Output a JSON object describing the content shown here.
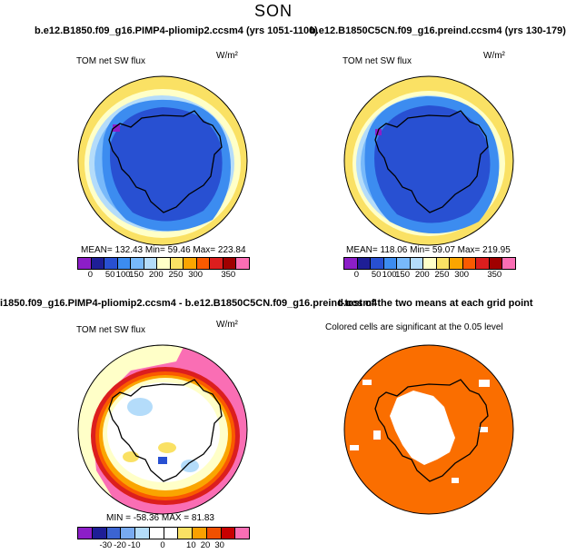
{
  "figure_title": "SON",
  "panels": [
    {
      "title": "b.e12.B1850.f09_g16.PIMP4-pliomip2.ccsm4 (yrs 1051-1100)",
      "variable": "TOM net SW flux",
      "units": "W/m²",
      "stats_label": "MEAN= 132.43  Min=  59.46  Max= 223.84",
      "ticks": [
        "0",
        "50",
        "100",
        "150",
        "200",
        "250",
        "300",
        "350"
      ]
    },
    {
      "title": "b.e12.B1850C5CN.f09_g16.preind.ccsm4 (yrs 130-179)",
      "variable": "TOM net SW flux",
      "units": "W/m²",
      "stats_label": "MEAN= 118.06  Min=  59.07  Max= 219.95",
      "ticks": [
        "0",
        "50",
        "100",
        "150",
        "200",
        "250",
        "300",
        "350"
      ]
    },
    {
      "title": "i1850.f09_g16.PIMP4-pliomip2.ccsm4 - b.e12.B1850C5CN.f09_g16.preind.ccsm4",
      "variable": "TOM net SW flux",
      "units": "W/m²",
      "stats_label": "MIN = -58.36  MAX =  81.83",
      "ticks": [
        "-30",
        "-20",
        "-10",
        "0",
        "10",
        "20",
        "30"
      ]
    },
    {
      "title": "t-test of the two means at each grid point",
      "subtitle": "Colored cells are significant at the 0.05 level"
    }
  ],
  "chart_data": [
    {
      "type": "heatmap",
      "projection": "south polar stereographic",
      "season": "SON",
      "variable": "TOM net SW flux",
      "units": "W/m2",
      "case": "b.e12.B1850.f09_g16.PIMP4-pliomip2.ccsm4 (yrs 1051-1100)",
      "mean": 132.43,
      "min": 59.46,
      "max": 223.84,
      "colorbar_ticks": [
        0,
        50,
        100,
        150,
        200,
        250,
        300,
        350
      ],
      "colorbar_range": [
        -25,
        375
      ]
    },
    {
      "type": "heatmap",
      "projection": "south polar stereographic",
      "season": "SON",
      "variable": "TOM net SW flux",
      "units": "W/m2",
      "case": "b.e12.B1850C5CN.f09_g16.preind.ccsm4 (yrs 130-179)",
      "mean": 118.06,
      "min": 59.07,
      "max": 219.95,
      "colorbar_ticks": [
        0,
        50,
        100,
        150,
        200,
        250,
        300,
        350
      ],
      "colorbar_range": [
        -25,
        375
      ]
    },
    {
      "type": "heatmap",
      "projection": "south polar stereographic",
      "variable": "TOM net SW flux difference",
      "units": "W/m2",
      "min": -58.36,
      "max": 81.83,
      "colorbar_ticks": [
        -30,
        -20,
        -10,
        0,
        10,
        20,
        30
      ],
      "colorbar_range": [
        -40,
        40
      ]
    },
    {
      "type": "heatmap",
      "projection": "south polar stereographic",
      "variable": "t-test significance mask",
      "significance_level": 0.05
    }
  ],
  "colors": {
    "absolute_scale": [
      "#8c1ec8",
      "#1e1e96",
      "#2850d2",
      "#3c8cf0",
      "#78b9fa",
      "#b4dcfa",
      "#ffffc8",
      "#fae164",
      "#faa500",
      "#fa5a00",
      "#dc1e1e",
      "#a00000",
      "#fa6eb4"
    ],
    "difference_scale": [
      "#8c1ec8",
      "#1e1e96",
      "#3c64d2",
      "#78aaf0",
      "#b4dcfa",
      "#ffffff",
      "#ffffff",
      "#fae164",
      "#faa000",
      "#f05000",
      "#c80000",
      "#fa6eb4"
    ],
    "significance": "#fa6e00",
    "coastline": "#000000"
  }
}
